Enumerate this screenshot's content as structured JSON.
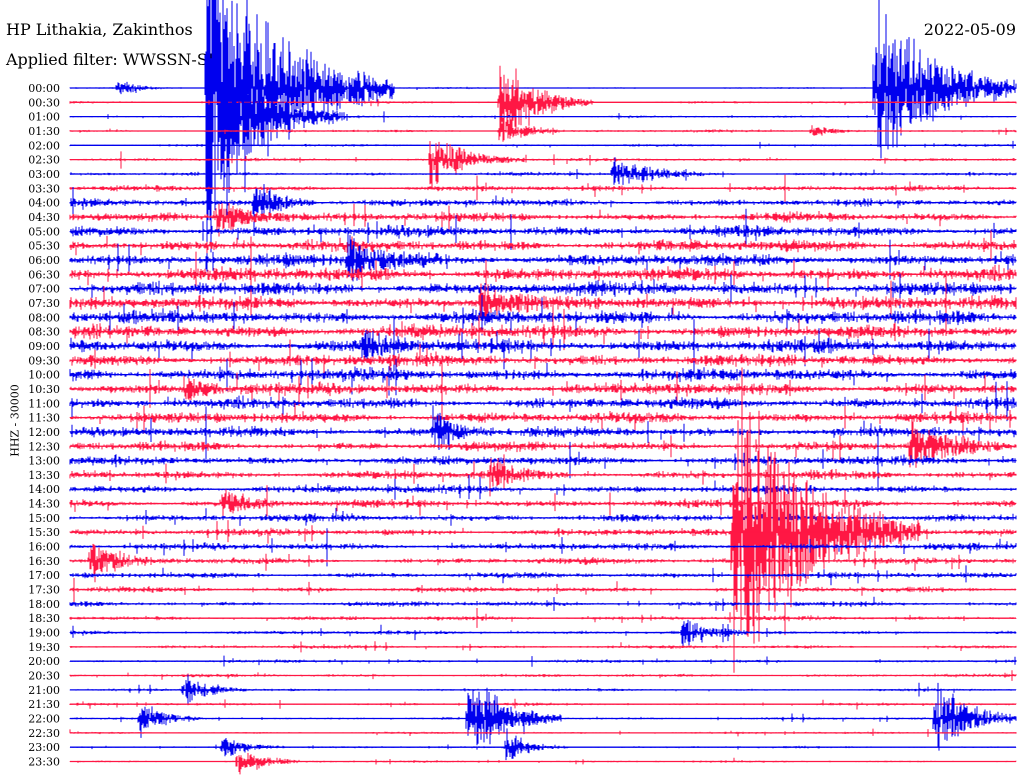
{
  "header": {
    "station": "HP Lithakia, Zakinthos",
    "filter": "Applied filter: WWSSN-SP",
    "date": "2022-05-09"
  },
  "colors": {
    "blue": "#0000ee",
    "red": "#ff1744",
    "background": "#ffffff"
  },
  "chart_data": {
    "type": "line",
    "title": "HP Lithakia, Zakinthos",
    "subtitle": "Applied filter: WWSSN-SP",
    "date": "2022-05-09",
    "ylabel": "HHZ - 30000",
    "xlabel": "",
    "row_labels": [
      "00:00",
      "00:30",
      "01:00",
      "01:30",
      "02:00",
      "02:30",
      "03:00",
      "03:30",
      "04:00",
      "04:30",
      "05:00",
      "05:30",
      "06:00",
      "06:30",
      "07:00",
      "07:30",
      "08:00",
      "08:30",
      "09:00",
      "09:30",
      "10:00",
      "10:30",
      "11:00",
      "11:30",
      "12:00",
      "12:30",
      "13:00",
      "13:30",
      "14:00",
      "14:30",
      "15:00",
      "15:30",
      "16:00",
      "16:30",
      "17:00",
      "17:30",
      "18:00",
      "18:30",
      "19:00",
      "19:30",
      "20:00",
      "20:30",
      "21:00",
      "21:30",
      "22:00",
      "22:30",
      "23:00",
      "23:30"
    ],
    "row_colors": [
      "blue",
      "red"
    ],
    "minutes_per_row": 30,
    "noise_level": [
      0.4,
      0.5,
      0.5,
      0.6,
      0.6,
      0.7,
      0.8,
      1.2,
      1.6,
      2.0,
      2.4,
      2.6,
      2.8,
      3.0,
      3.0,
      3.0,
      3.0,
      3.0,
      3.0,
      2.8,
      2.8,
      2.6,
      2.5,
      2.4,
      2.2,
      2.0,
      2.0,
      1.9,
      1.8,
      1.8,
      1.7,
      1.6,
      1.5,
      1.4,
      1.3,
      1.2,
      1.1,
      1.0,
      0.9,
      0.8,
      0.7,
      0.7,
      0.6,
      0.6,
      0.6,
      0.5,
      0.5,
      0.5
    ],
    "events": [
      {
        "row": 0,
        "minute": 1.5,
        "amp": 12,
        "dur": 1.5
      },
      {
        "row": 0,
        "minute": 4.3,
        "amp": 200,
        "dur": 6
      },
      {
        "row": 0,
        "minute": 25.5,
        "amp": 120,
        "dur": 5
      },
      {
        "row": 1,
        "minute": 13.6,
        "amp": 60,
        "dur": 3
      },
      {
        "row": 2,
        "minute": 4.8,
        "amp": 80,
        "dur": 4
      },
      {
        "row": 3,
        "minute": 13.6,
        "amp": 22,
        "dur": 2
      },
      {
        "row": 3,
        "minute": 23.5,
        "amp": 10,
        "dur": 1.5
      },
      {
        "row": 5,
        "minute": 11.4,
        "amp": 36,
        "dur": 3
      },
      {
        "row": 6,
        "minute": 17.2,
        "amp": 20,
        "dur": 3
      },
      {
        "row": 8,
        "minute": 5.8,
        "amp": 30,
        "dur": 2
      },
      {
        "row": 9,
        "minute": 4.6,
        "amp": 24,
        "dur": 3
      },
      {
        "row": 12,
        "minute": 8.8,
        "amp": 26,
        "dur": 3
      },
      {
        "row": 15,
        "minute": 13.0,
        "amp": 26,
        "dur": 2
      },
      {
        "row": 18,
        "minute": 9.3,
        "amp": 22,
        "dur": 2
      },
      {
        "row": 21,
        "minute": 3.6,
        "amp": 18,
        "dur": 2
      },
      {
        "row": 24,
        "minute": 11.5,
        "amp": 24,
        "dur": 2
      },
      {
        "row": 25,
        "minute": 26.6,
        "amp": 30,
        "dur": 3
      },
      {
        "row": 27,
        "minute": 13.3,
        "amp": 22,
        "dur": 2
      },
      {
        "row": 29,
        "minute": 4.8,
        "amp": 18,
        "dur": 2
      },
      {
        "row": 31,
        "minute": 21.0,
        "amp": 200,
        "dur": 6
      },
      {
        "row": 33,
        "minute": 0.6,
        "amp": 26,
        "dur": 2
      },
      {
        "row": 38,
        "minute": 19.4,
        "amp": 20,
        "dur": 2
      },
      {
        "row": 42,
        "minute": 3.6,
        "amp": 18,
        "dur": 2
      },
      {
        "row": 44,
        "minute": 2.2,
        "amp": 22,
        "dur": 2
      },
      {
        "row": 44,
        "minute": 12.6,
        "amp": 60,
        "dur": 3
      },
      {
        "row": 44,
        "minute": 27.4,
        "amp": 48,
        "dur": 3
      },
      {
        "row": 46,
        "minute": 4.8,
        "amp": 18,
        "dur": 2
      },
      {
        "row": 46,
        "minute": 13.8,
        "amp": 20,
        "dur": 2
      },
      {
        "row": 47,
        "minute": 5.3,
        "amp": 18,
        "dur": 2
      }
    ],
    "grid": false,
    "legend": "none"
  }
}
